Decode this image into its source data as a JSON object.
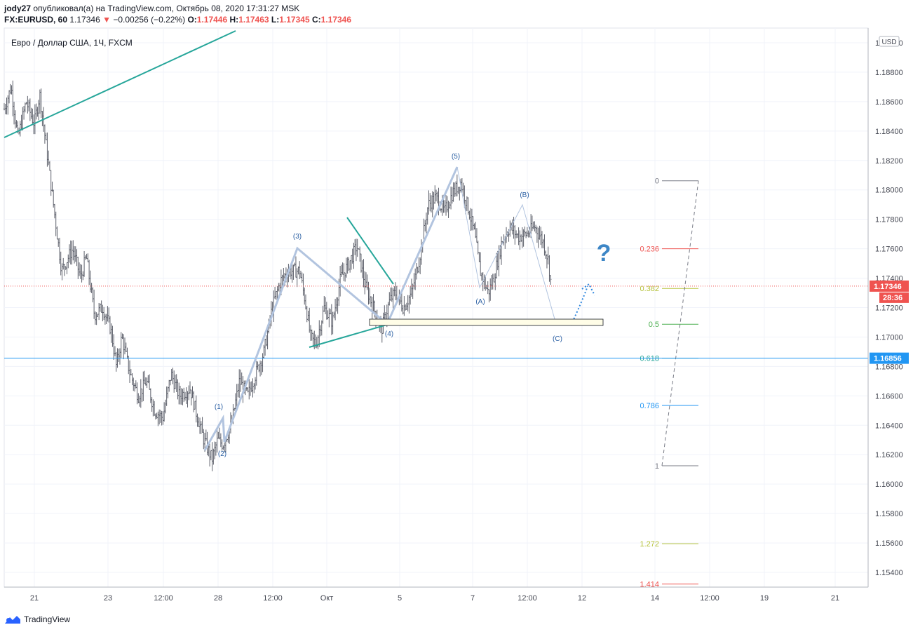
{
  "header": {
    "author": "jody27",
    "published_text": "опубликовал(а) на TradingView.com, Октябрь 08, 2020 17:31:27 MSK",
    "symbol_line": "FX:EURUSD, 60",
    "last": "1.17346",
    "change": "−0.00256 (−0.22%)",
    "o_label": "O:",
    "o_value": "1.17446",
    "h_label": "H:",
    "h_value": "1.17463",
    "l_label": "L:",
    "l_value": "1.17345",
    "c_label": "C:",
    "c_value": "1.17346"
  },
  "symbol_title": "Евро / Доллар США, 1Ч, FXCM",
  "currency_badge": "USD",
  "footer": {
    "logo_text": "TradingView"
  },
  "colors": {
    "trendline": "#26a69a",
    "wave": "#b2c4df",
    "label": "#2a5fa3",
    "price_tag": "#ef5350",
    "hline": "#2196f3",
    "question": "#3d86c6"
  },
  "chart_data": {
    "type": "candlestick",
    "title": "",
    "y_axis": {
      "min": 1.153,
      "max": 1.191,
      "tick_labels": [
        "1.19000",
        "1.18800",
        "1.18600",
        "1.18400",
        "1.18200",
        "1.18000",
        "1.17800",
        "1.17600",
        "1.17400",
        "1.17200",
        "1.17000",
        "1.16800",
        "1.16600",
        "1.16400",
        "1.16200",
        "1.16000",
        "1.15800",
        "1.15600",
        "1.15400"
      ],
      "ticks": [
        1.19,
        1.188,
        1.186,
        1.184,
        1.182,
        1.18,
        1.178,
        1.176,
        1.174,
        1.172,
        1.17,
        1.168,
        1.166,
        1.164,
        1.162,
        1.16,
        1.158,
        1.156,
        1.154
      ]
    },
    "x_axis": {
      "tick_labels": [
        "21",
        "23",
        "12:00",
        "28",
        "12:00",
        "Окт",
        "5",
        "7",
        "12:00",
        "12",
        "14",
        "12:00",
        "19",
        "21"
      ]
    },
    "price_tags": [
      {
        "label": "1.17346",
        "value": 1.17346,
        "sub": "28:36"
      },
      {
        "label": "1.16856",
        "value": 1.16856
      }
    ],
    "series_anchors": [
      [
        0,
        1.1855
      ],
      [
        0.25,
        1.187
      ],
      [
        0.5,
        1.1835
      ],
      [
        0.8,
        1.186
      ],
      [
        1.1,
        1.1845
      ],
      [
        1.3,
        1.1865
      ],
      [
        1.5,
        1.1835
      ],
      [
        1.8,
        1.179
      ],
      [
        2.1,
        1.1745
      ],
      [
        2.5,
        1.176
      ],
      [
        2.8,
        1.174
      ],
      [
        3.0,
        1.1755
      ],
      [
        3.3,
        1.1715
      ],
      [
        3.6,
        1.172
      ],
      [
        3.9,
        1.1705
      ],
      [
        4.1,
        1.168
      ],
      [
        4.3,
        1.17
      ],
      [
        4.6,
        1.1675
      ],
      [
        4.9,
        1.166
      ],
      [
        5.2,
        1.167
      ],
      [
        5.5,
        1.165
      ],
      [
        5.8,
        1.1645
      ],
      [
        6.1,
        1.1675
      ],
      [
        6.4,
        1.166
      ],
      [
        6.8,
        1.1665
      ],
      [
        7.0,
        1.165
      ],
      [
        7.3,
        1.163
      ],
      [
        7.6,
        1.1617
      ],
      [
        7.8,
        1.163
      ],
      [
        8.0,
        1.1627
      ],
      [
        8.3,
        1.164
      ],
      [
        8.6,
        1.167
      ],
      [
        8.9,
        1.166
      ],
      [
        9.2,
        1.1675
      ],
      [
        9.5,
        1.169
      ],
      [
        9.8,
        1.172
      ],
      [
        10.1,
        1.1738
      ],
      [
        10.4,
        1.1745
      ],
      [
        10.8,
        1.1745
      ],
      [
        11.0,
        1.1725
      ],
      [
        11.2,
        1.17
      ],
      [
        11.4,
        1.1695
      ],
      [
        11.7,
        1.172
      ],
      [
        12.0,
        1.171
      ],
      [
        12.3,
        1.174
      ],
      [
        12.6,
        1.175
      ],
      [
        12.9,
        1.1762
      ],
      [
        13.2,
        1.1735
      ],
      [
        13.5,
        1.172
      ],
      [
        13.8,
        1.1705
      ],
      [
        14.1,
        1.1725
      ],
      [
        14.3,
        1.173
      ],
      [
        14.6,
        1.172
      ],
      [
        14.9,
        1.173
      ],
      [
        15.2,
        1.1755
      ],
      [
        15.5,
        1.179
      ],
      [
        15.8,
        1.1795
      ],
      [
        16.1,
        1.1785
      ],
      [
        16.4,
        1.1798
      ],
      [
        16.7,
        1.1805
      ],
      [
        17.0,
        1.1785
      ],
      [
        17.2,
        1.177
      ],
      [
        17.4,
        1.1745
      ],
      [
        17.7,
        1.173
      ],
      [
        17.9,
        1.174
      ],
      [
        18.2,
        1.1765
      ],
      [
        18.5,
        1.1775
      ],
      [
        18.8,
        1.1768
      ],
      [
        19.1,
        1.177
      ],
      [
        19.4,
        1.1775
      ],
      [
        19.7,
        1.1765
      ],
      [
        19.9,
        1.1752
      ],
      [
        20.0,
        1.1735
      ]
    ],
    "wave_labels": [
      {
        "text": "(1)",
        "x": 7.9,
        "y": 1.1642
      },
      {
        "text": "(2)",
        "x": 8.1,
        "y": 1.1608
      },
      {
        "text": "(3)",
        "x": 10.7,
        "y": 1.1757
      },
      {
        "text": "(4)",
        "x": 14.3,
        "y": 1.169
      },
      {
        "text": "(5)",
        "x": 16.8,
        "y": 1.182
      },
      {
        "text": "(A)",
        "x": 17.7,
        "y": 1.1717
      },
      {
        "text": "(B)",
        "x": 19.4,
        "y": 1.1786
      },
      {
        "text": "(C)",
        "x": 20.6,
        "y": 1.1694
      }
    ],
    "fib_levels": [
      {
        "label": "0",
        "value": 1.18062,
        "color": "#787b86"
      },
      {
        "label": "0.236",
        "value": 1.176,
        "color": "#ef5350"
      },
      {
        "label": "0.382",
        "value": 1.1733,
        "color": "#b5c23a"
      },
      {
        "label": "0.5",
        "value": 1.17087,
        "color": "#4caf50"
      },
      {
        "label": "0.618",
        "value": 1.16856,
        "color": "#26a69a"
      },
      {
        "label": "0.786",
        "value": 1.16535,
        "color": "#2196f3"
      },
      {
        "label": "1",
        "value": 1.16125,
        "color": "#787b86"
      },
      {
        "label": "1.272",
        "value": 1.15595,
        "color": "#b5c23a"
      },
      {
        "label": "1.414",
        "value": 1.15321,
        "color": "#ef5350"
      }
    ],
    "question_mark": "?",
    "grid": true
  }
}
